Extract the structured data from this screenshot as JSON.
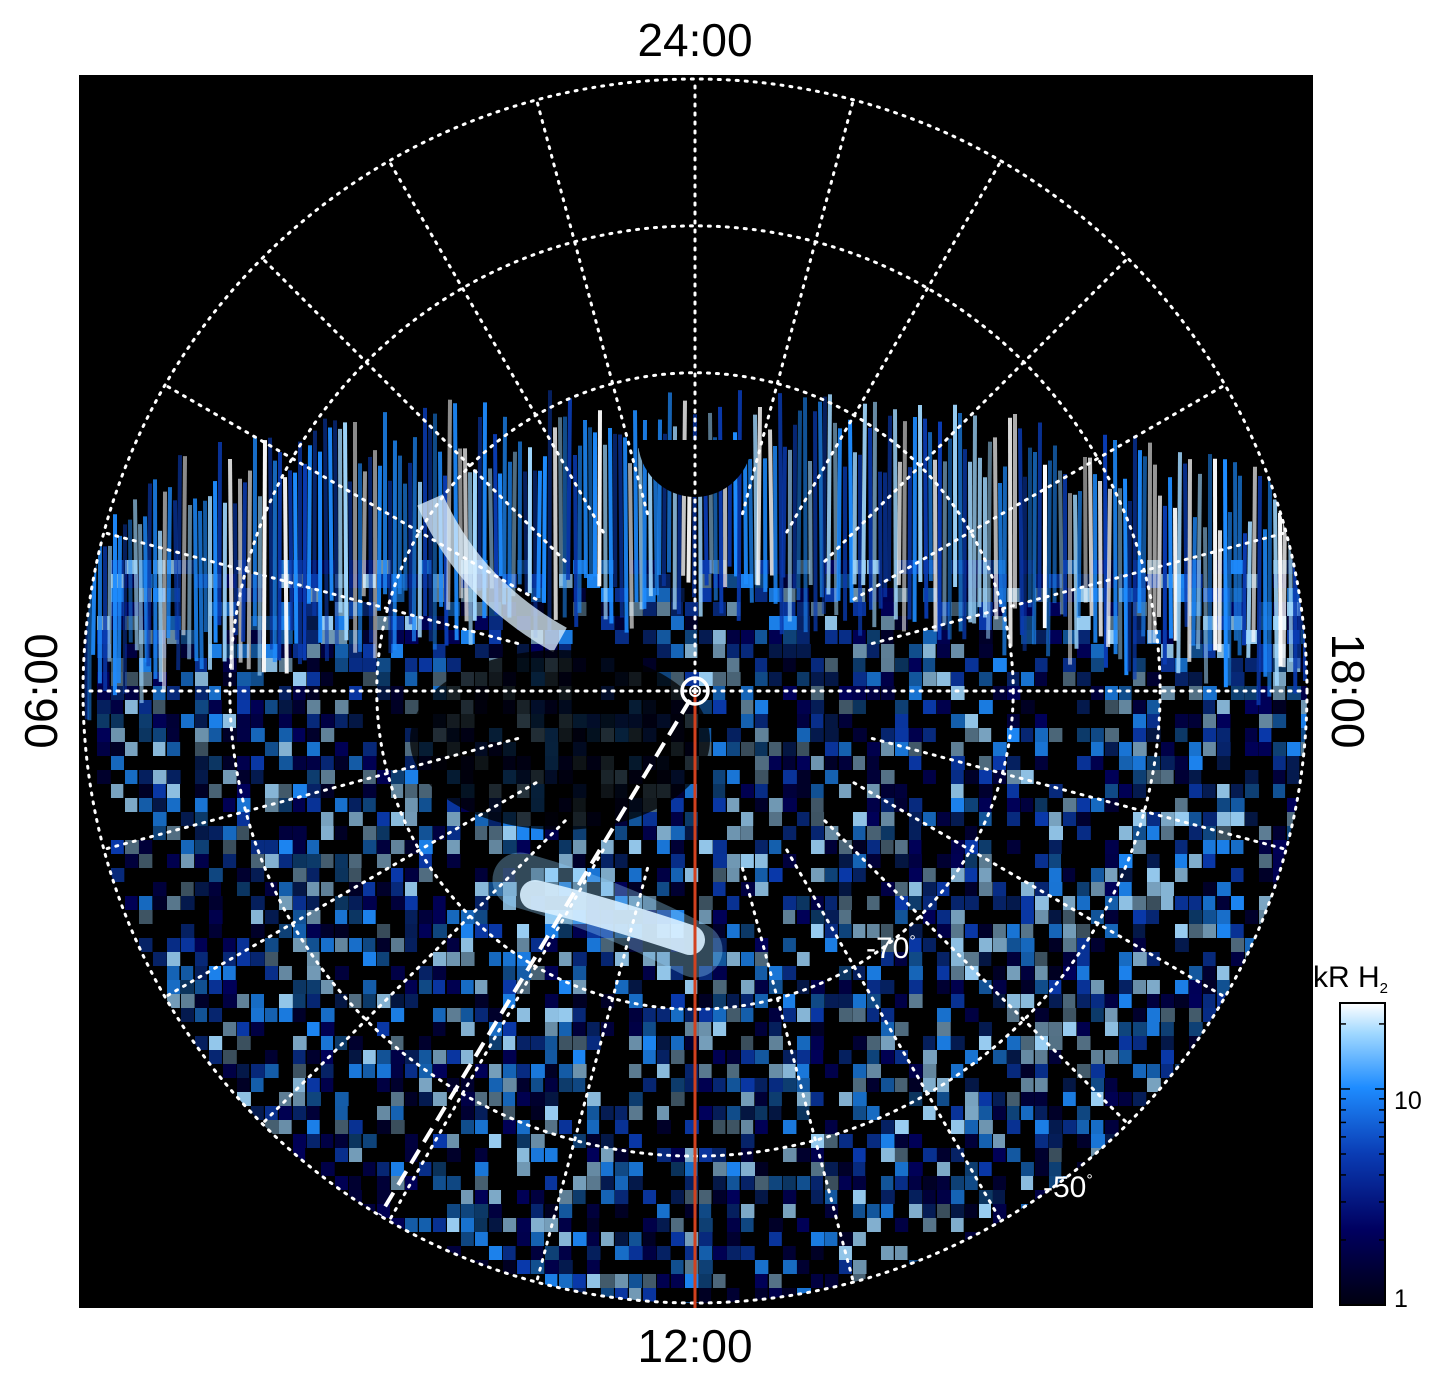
{
  "figure": {
    "local_time_labels": {
      "top": "24:00",
      "bottom": "12:00",
      "left": "06:00",
      "right": "18:00"
    },
    "latitude_labels": [
      {
        "value": "-70",
        "degree": "°"
      },
      {
        "value": "-50",
        "degree": "°"
      }
    ],
    "colorbar": {
      "title_main": "kR H",
      "title_sub": "2",
      "tick_labels": [
        "1",
        "10"
      ],
      "scale": "log",
      "range": [
        1,
        25
      ],
      "colors": [
        "#000010",
        "#000060",
        "#0a3cb4",
        "#1e8cff",
        "#a0d8ff",
        "#ffffff"
      ]
    },
    "colors": {
      "background": "#000000",
      "grid": "#ffffff",
      "meridian_line": "#d2411e"
    }
  }
}
